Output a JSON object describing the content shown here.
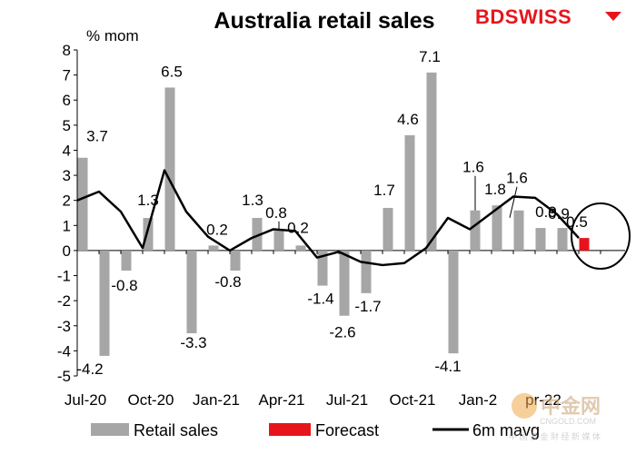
{
  "chart_data": {
    "type": "bar",
    "title": "Australia retail sales",
    "ylabel": "% mom",
    "ylim": [
      -5,
      8
    ],
    "yticks": [
      -5,
      -4,
      -3,
      -2,
      -1,
      0,
      1,
      2,
      3,
      4,
      5,
      6,
      7,
      8
    ],
    "categories": [
      "Jul-20",
      "Aug-20",
      "Sep-20",
      "Oct-20",
      "Nov-20",
      "Dec-20",
      "Jan-21",
      "Feb-21",
      "Mar-21",
      "Apr-21",
      "May-21",
      "Jun-21",
      "Jul-21",
      "Aug-21",
      "Sep-21",
      "Oct-21",
      "Nov-21",
      "Dec-21",
      "Jan-22",
      "Feb-22",
      "Mar-22",
      "Apr-22",
      "May-22",
      "Jun-22"
    ],
    "x_tick_labels": [
      "Jul-20",
      "Oct-20",
      "Jan-21",
      "Apr-21",
      "Jul-21",
      "Oct-21",
      "Jan-22",
      "Apr-22"
    ],
    "x_tick_label_shown": [
      "Jul-20",
      "Oct-20",
      "Jan-21",
      "Apr-21",
      "Jul-21",
      "Oct-21",
      "Jan-2",
      "pr-22"
    ],
    "series": [
      {
        "name": "Retail sales",
        "type": "bar",
        "color": "#a6a6a6",
        "values": [
          3.7,
          -4.2,
          -0.8,
          1.3,
          6.5,
          -3.3,
          0.2,
          -0.8,
          1.3,
          0.8,
          0.2,
          -1.4,
          -2.6,
          -1.7,
          1.7,
          4.6,
          7.1,
          -4.1,
          1.6,
          1.8,
          1.6,
          0.9,
          0.9,
          null
        ]
      },
      {
        "name": "Forecast",
        "type": "bar",
        "color": "#e8141c",
        "values": [
          null,
          null,
          null,
          null,
          null,
          null,
          null,
          null,
          null,
          null,
          null,
          null,
          null,
          null,
          null,
          null,
          null,
          null,
          null,
          null,
          null,
          null,
          null,
          0.5
        ]
      },
      {
        "name": "6m mavg",
        "type": "line",
        "color": "#000000",
        "values": [
          2.0,
          2.35,
          1.55,
          0.1,
          3.2,
          1.55,
          0.55,
          0.0,
          0.5,
          0.85,
          0.78,
          -0.28,
          -0.05,
          -0.45,
          -0.58,
          -0.5,
          0.1,
          1.3,
          0.85,
          1.5,
          2.15,
          2.1,
          1.45,
          0.5
        ]
      }
    ],
    "data_labels": [
      {
        "text": "3.7",
        "index": 0
      },
      {
        "text": "-4.2",
        "index": 1
      },
      {
        "text": "-0.8",
        "index": 2
      },
      {
        "text": "1.3",
        "index": 3
      },
      {
        "text": "6.5",
        "index": 4
      },
      {
        "text": "-3.3",
        "index": 5
      },
      {
        "text": "0.2",
        "index": 6
      },
      {
        "text": "-0.8",
        "index": 7
      },
      {
        "text": "1.3",
        "index": 8
      },
      {
        "text": "0.8",
        "index": 9
      },
      {
        "text": "0.2",
        "index": 10
      },
      {
        "text": "-1.4",
        "index": 11
      },
      {
        "text": "-2.6",
        "index": 12
      },
      {
        "text": "-1.7",
        "index": 13
      },
      {
        "text": "1.7",
        "index": 14
      },
      {
        "text": "4.6",
        "index": 15
      },
      {
        "text": "7.1",
        "index": 16
      },
      {
        "text": "-4.1",
        "index": 17
      },
      {
        "text": "1.6",
        "index": 18
      },
      {
        "text": "1.8",
        "index": 19
      },
      {
        "text": "1.6",
        "index": 20
      },
      {
        "text": "0.9",
        "index": 21
      },
      {
        "text": "0.9",
        "index": 22
      },
      {
        "text": "0.5",
        "index": 23
      }
    ],
    "legend": [
      {
        "label": "Retail sales",
        "color": "#a6a6a6",
        "kind": "bar"
      },
      {
        "label": "Forecast",
        "color": "#e8141c",
        "kind": "bar"
      },
      {
        "label": "6m mavg",
        "color": "#000000",
        "kind": "line"
      }
    ],
    "legend_placement": "bottom",
    "annotation": "circle around forecast bar",
    "grid": false
  },
  "logo": {
    "text": "BDSWISS",
    "color": "#e8141c"
  },
  "watermark": {
    "big": "中金网",
    "small": "CNGOLD.COM",
    "tagline": "中 国 黄 金 财 经 新 媒 体"
  }
}
